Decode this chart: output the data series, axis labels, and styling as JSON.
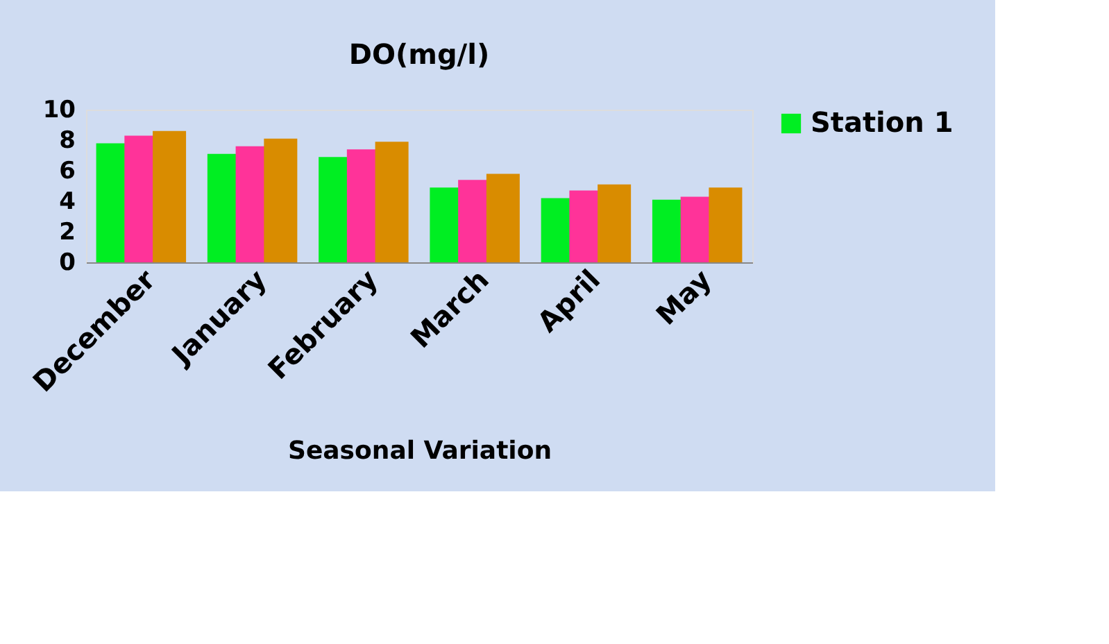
{
  "chart_data": {
    "type": "bar",
    "title": "DO(mg/l)",
    "xlabel": "Seasonal Variation",
    "categories": [
      "December",
      "January",
      "February",
      "March",
      "April",
      "May"
    ],
    "series": [
      {
        "name": "Station 1",
        "color": "#00ee22",
        "values": [
          7.8,
          7.1,
          6.9,
          4.9,
          4.2,
          4.1
        ]
      },
      {
        "color": "#ff3399",
        "values": [
          8.3,
          7.6,
          7.4,
          5.4,
          4.7,
          4.3
        ]
      },
      {
        "color": "#d98c00",
        "values": [
          8.6,
          8.1,
          7.9,
          5.8,
          5.1,
          4.9
        ]
      }
    ],
    "ylim": [
      0,
      10
    ],
    "yticks": [
      0,
      2,
      4,
      6,
      8,
      10
    ],
    "grid": false,
    "legend": "right"
  }
}
